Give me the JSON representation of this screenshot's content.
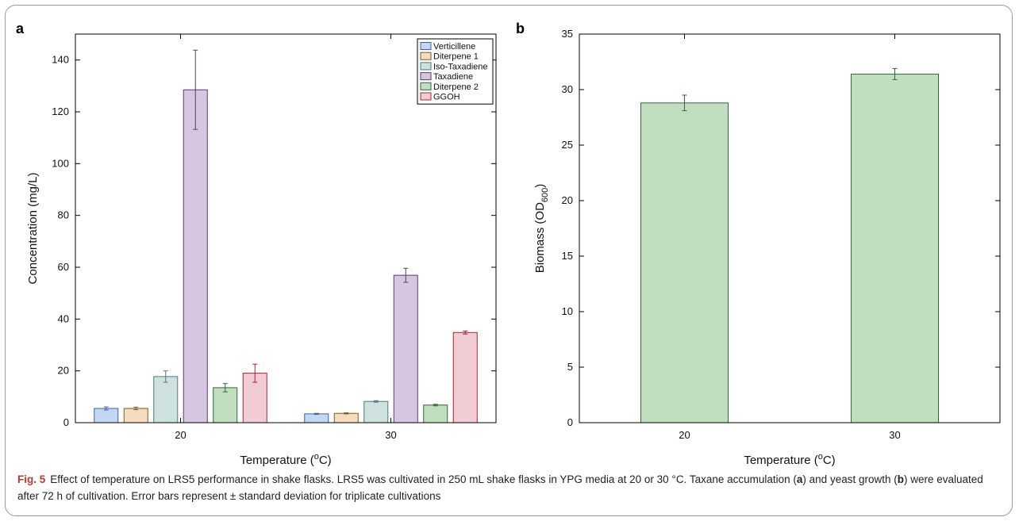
{
  "caption": {
    "fig_label": "Fig. 5",
    "text_1": "Effect of temperature on LRS5 performance in shake flasks. LRS5 was cultivated in 250 mL shake flasks in YPG media at 20 or 30 °C. Taxane accumulation (",
    "ref_a": "a",
    "text_2": ") and yeast growth (",
    "ref_b": "b",
    "text_3": ") were evaluated after 72 h of cultivation. Error bars represent ± standard deviation for triplicate cultivations"
  },
  "chart_data": [
    {
      "panel": "a",
      "type": "bar",
      "categories": [
        "20",
        "30"
      ],
      "xlabel": "Temperature (oC)",
      "xlabel_main": "Temperature (",
      "xlabel_sup": "o",
      "xlabel_end": "C)",
      "ylabel": "Concentration (mg/L)",
      "ylim": [
        0,
        150
      ],
      "yticks": [
        0,
        20,
        40,
        60,
        80,
        100,
        120,
        140
      ],
      "legend_position": "top-right",
      "series": [
        {
          "name": "Verticillene",
          "color": "#c4d7f2",
          "edge": "#3f63a8",
          "values": [
            5.5,
            3.4
          ],
          "errors": [
            0.6,
            0.2
          ]
        },
        {
          "name": "Diterpene 1",
          "color": "#f5dcbc",
          "edge": "#7a5a2c",
          "values": [
            5.5,
            3.6
          ],
          "errors": [
            0.5,
            0.2
          ]
        },
        {
          "name": "Iso-Taxadiene",
          "color": "#cfe1df",
          "edge": "#4f7a78",
          "values": [
            17.8,
            8.2
          ],
          "errors": [
            2.2,
            0.3
          ]
        },
        {
          "name": "Taxadiene",
          "color": "#d7c6df",
          "edge": "#5a3b6e",
          "values": [
            128.5,
            56.9
          ],
          "errors": [
            15.3,
            2.7
          ]
        },
        {
          "name": "Diterpene 2",
          "color": "#c2dec1",
          "edge": "#2f6a36",
          "values": [
            13.5,
            6.8
          ],
          "errors": [
            1.6,
            0.3
          ]
        },
        {
          "name": "GGOH",
          "color": "#f1cdd3",
          "edge": "#a8203a",
          "values": [
            19.1,
            34.8
          ],
          "errors": [
            3.5,
            0.6
          ]
        }
      ]
    },
    {
      "panel": "b",
      "type": "bar",
      "categories": [
        "20",
        "30"
      ],
      "xlabel": "Temperature (oC)",
      "xlabel_main": "Temperature (",
      "xlabel_sup": "o",
      "xlabel_end": "C)",
      "ylabel": "Biomass (OD600)",
      "ylabel_main": "Biomass (OD",
      "ylabel_sub": "600",
      "ylabel_end": ")",
      "ylim": [
        0,
        35
      ],
      "yticks": [
        0,
        5,
        10,
        15,
        20,
        25,
        30,
        35
      ],
      "series": [
        {
          "name": "",
          "color": "#c2dec1",
          "edge": "#2f6a36",
          "values": [
            28.8,
            31.4
          ],
          "errors": [
            0.7,
            0.5
          ]
        }
      ]
    }
  ]
}
